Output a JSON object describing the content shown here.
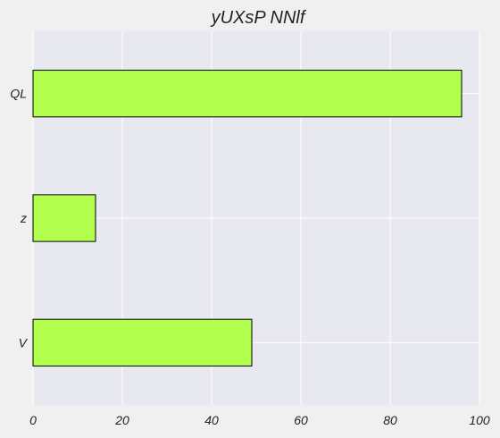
{
  "chart_data": {
    "type": "bar",
    "orientation": "horizontal",
    "title": "yUXsP NNlf",
    "xlabel": "",
    "ylabel": "",
    "categories": [
      "QL",
      "z",
      "V"
    ],
    "values": [
      96,
      14,
      49
    ],
    "xlim": [
      0,
      100
    ],
    "xticks": [
      "0",
      "20",
      "40",
      "60",
      "80",
      "100"
    ],
    "grid": true,
    "colors": {
      "bar": "#b3ff4d",
      "bar_edge": "#000000",
      "plot_bg": "#e8e8f0",
      "figure_bg": "#f0f0f0",
      "grid": "#ffffff"
    }
  }
}
